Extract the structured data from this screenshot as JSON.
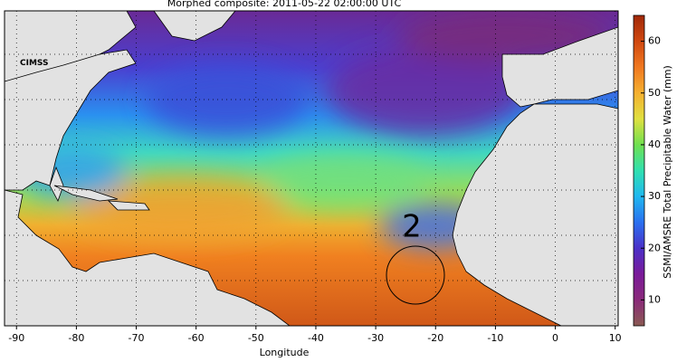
{
  "title": "Morphed composite: 2011-05-22 02:00:00 UTC",
  "logo": "CIMSS",
  "map": {
    "xlabel": "Longitude",
    "xlim": [
      -92,
      10.5
    ],
    "xticks": [
      -90,
      -80,
      -70,
      -60,
      -50,
      -40,
      -30,
      -20,
      -10,
      0,
      10
    ],
    "annotation": "2"
  },
  "colorbar": {
    "label": "SSMI/AMSRE Total Precipitable Water (mm)",
    "lim": [
      5,
      65
    ],
    "ticks": [
      10,
      20,
      30,
      40,
      50,
      60
    ],
    "colors": [
      "#8a5a52",
      "#8a2a7a",
      "#7a1a9a",
      "#4a30c8",
      "#2a70f0",
      "#20b8f0",
      "#30e0b0",
      "#70e050",
      "#e0e040",
      "#f5b030",
      "#f07820",
      "#d04810",
      "#a02808"
    ]
  }
}
